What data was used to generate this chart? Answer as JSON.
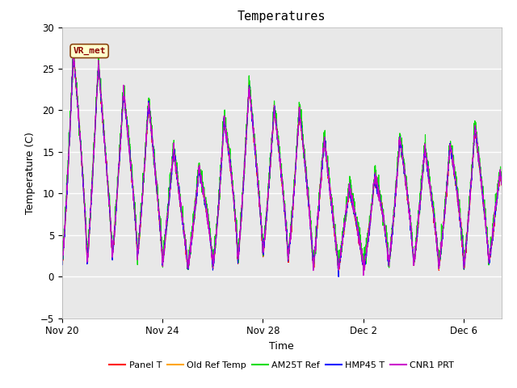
{
  "title": "Temperatures",
  "xlabel": "Time",
  "ylabel": "Temperature (C)",
  "ylim": [
    -5,
    30
  ],
  "yticks": [
    -5,
    0,
    5,
    10,
    15,
    20,
    25,
    30
  ],
  "annotation_text": "VR_met",
  "background_color": "#ffffff",
  "plot_bg_color": "#e8e8e8",
  "series": [
    {
      "label": "Panel T",
      "color": "#ff0000",
      "lw": 0.8
    },
    {
      "label": "Old Ref Temp",
      "color": "#ffa500",
      "lw": 0.8
    },
    {
      "label": "AM25T Ref",
      "color": "#00dd00",
      "lw": 0.8
    },
    {
      "label": "HMP45 T",
      "color": "#0000ff",
      "lw": 0.8
    },
    {
      "label": "CNR1 PRT",
      "color": "#cc00cc",
      "lw": 0.8
    }
  ],
  "xtick_labels": [
    "Nov 20",
    "Nov 24",
    "Nov 28",
    "Dec 2",
    "Dec 6"
  ],
  "xtick_day_positions": [
    0,
    4,
    8,
    12,
    16
  ],
  "total_days": 17.5,
  "grid_color": "#ffffff",
  "title_fontsize": 11,
  "axis_label_fontsize": 9,
  "tick_fontsize": 8.5,
  "legend_fontsize": 8
}
